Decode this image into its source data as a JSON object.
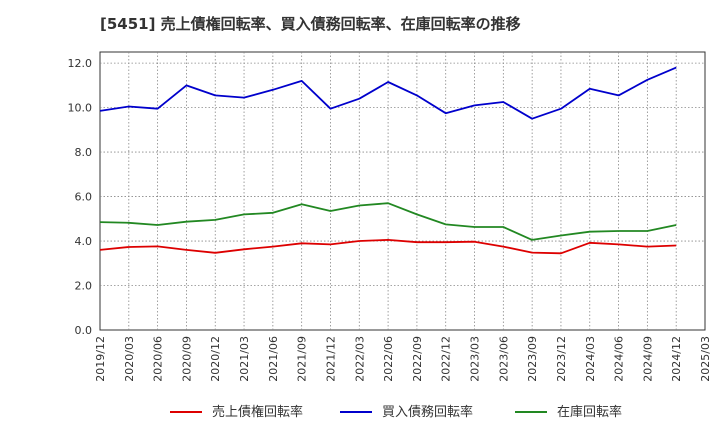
{
  "chart_data": {
    "type": "line",
    "title": "[5451]  売上債権回転率、買入債務回転率、在庫回転率の推移",
    "xlabel": "",
    "ylabel": "",
    "ylim": [
      0,
      12.5
    ],
    "yticks": [
      0.0,
      2.0,
      4.0,
      6.0,
      8.0,
      10.0,
      12.0
    ],
    "ytick_labels": [
      "0.0",
      "2.0",
      "4.0",
      "6.0",
      "8.0",
      "10.0",
      "12.0"
    ],
    "grid": true,
    "legend_position": "bottom",
    "x": [
      "2019/12",
      "2020/03",
      "2020/06",
      "2020/09",
      "2020/12",
      "2021/03",
      "2021/06",
      "2021/09",
      "2021/12",
      "2022/03",
      "2022/06",
      "2022/09",
      "2022/12",
      "2023/03",
      "2023/06",
      "2023/09",
      "2023/12",
      "2024/03",
      "2024/06",
      "2024/09",
      "2024/12",
      "2025/03"
    ],
    "series": [
      {
        "name": "売上債権回転率",
        "color": "#dd0000",
        "values": [
          3.6,
          3.73,
          3.76,
          3.6,
          3.47,
          3.63,
          3.75,
          3.9,
          3.85,
          4.0,
          4.05,
          3.95,
          3.95,
          3.97,
          3.75,
          3.48,
          3.45,
          3.92,
          3.85,
          3.75,
          3.8,
          null
        ]
      },
      {
        "name": "買入債務回転率",
        "color": "#0000cc",
        "values": [
          9.85,
          10.05,
          9.95,
          11.0,
          10.55,
          10.45,
          10.8,
          11.2,
          9.95,
          10.4,
          11.15,
          10.55,
          9.75,
          10.1,
          10.25,
          9.5,
          9.95,
          10.85,
          10.55,
          11.25,
          11.8,
          null
        ]
      },
      {
        "name": "在庫回転率",
        "color": "#228822",
        "values": [
          4.85,
          4.82,
          4.72,
          4.87,
          4.95,
          5.2,
          5.27,
          5.65,
          5.35,
          5.6,
          5.7,
          5.2,
          4.75,
          4.63,
          4.63,
          4.05,
          4.25,
          4.42,
          4.45,
          4.45,
          4.72,
          null
        ]
      }
    ]
  }
}
